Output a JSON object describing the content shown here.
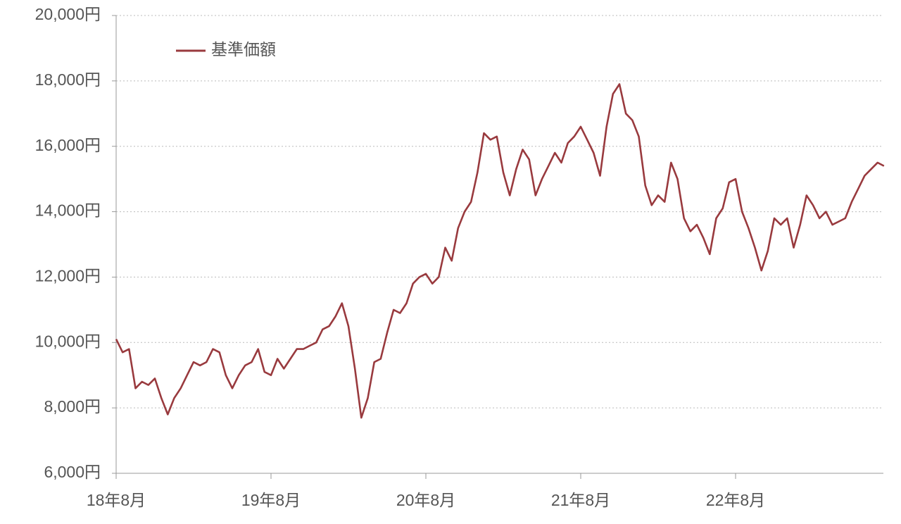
{
  "chart_data": {
    "type": "line",
    "categories": [
      "18年8月",
      null,
      null,
      null,
      null,
      null,
      null,
      null,
      null,
      null,
      null,
      null,
      null,
      null,
      null,
      null,
      null,
      null,
      null,
      null,
      null,
      null,
      null,
      null,
      "19年8月",
      null,
      null,
      null,
      null,
      null,
      null,
      null,
      null,
      null,
      null,
      null,
      null,
      null,
      null,
      null,
      null,
      null,
      null,
      null,
      null,
      null,
      null,
      null,
      "20年8月",
      null,
      null,
      null,
      null,
      null,
      null,
      null,
      null,
      null,
      null,
      null,
      null,
      null,
      null,
      null,
      null,
      null,
      null,
      null,
      null,
      null,
      null,
      null,
      "21年8月",
      null,
      null,
      null,
      null,
      null,
      null,
      null,
      null,
      null,
      null,
      null,
      null,
      null,
      null,
      null,
      null,
      null,
      null,
      null,
      null,
      null,
      null,
      null,
      "22年8月",
      null,
      null,
      null,
      null,
      null,
      null,
      null,
      null,
      null,
      null,
      null,
      null,
      null,
      null,
      null,
      null,
      null,
      null,
      null,
      null,
      null,
      null,
      null
    ],
    "series": [
      {
        "name": "基準価額",
        "color": "#993a3e",
        "values": [
          10100,
          9700,
          9800,
          8600,
          8800,
          8700,
          8900,
          8300,
          7800,
          8300,
          8600,
          9000,
          9400,
          9300,
          9400,
          9800,
          9700,
          9000,
          8600,
          9000,
          9300,
          9400,
          9800,
          9100,
          9000,
          9500,
          9200,
          9500,
          9800,
          9800,
          9900,
          10000,
          10400,
          10500,
          10800,
          11200,
          10500,
          9200,
          7700,
          8300,
          9400,
          9500,
          10300,
          11000,
          10900,
          11200,
          11800,
          12000,
          12100,
          11800,
          12000,
          12900,
          12500,
          13500,
          14000,
          14300,
          15200,
          16400,
          16200,
          16300,
          15200,
          14500,
          15300,
          15900,
          15600,
          14500,
          15000,
          15400,
          15800,
          15500,
          16100,
          16300,
          16600,
          16200,
          15800,
          15100,
          16600,
          17600,
          17900,
          17000,
          16800,
          16300,
          14800,
          14200,
          14500,
          14300,
          15500,
          15000,
          13800,
          13400,
          13600,
          13200,
          12700,
          13800,
          14100,
          14900,
          15000,
          14000,
          13500,
          12900,
          12200,
          12800,
          13800,
          13600,
          13800,
          12900,
          13600,
          14500,
          14200,
          13800,
          14000,
          13600,
          13700,
          13800,
          14300,
          14700,
          15100,
          15300,
          15500,
          15400
        ]
      }
    ],
    "ylim": [
      6000,
      20000
    ],
    "yticks": [
      {
        "value": 6000,
        "label": "6,000円"
      },
      {
        "value": 8000,
        "label": "8,000円"
      },
      {
        "value": 10000,
        "label": "10,000円"
      },
      {
        "value": 12000,
        "label": "12,000円"
      },
      {
        "value": 14000,
        "label": "14,000円"
      },
      {
        "value": 16000,
        "label": "16,000円"
      },
      {
        "value": 18000,
        "label": "18,000円"
      },
      {
        "value": 20000,
        "label": "20,000円"
      }
    ],
    "grid": true,
    "legend": "top-left"
  }
}
